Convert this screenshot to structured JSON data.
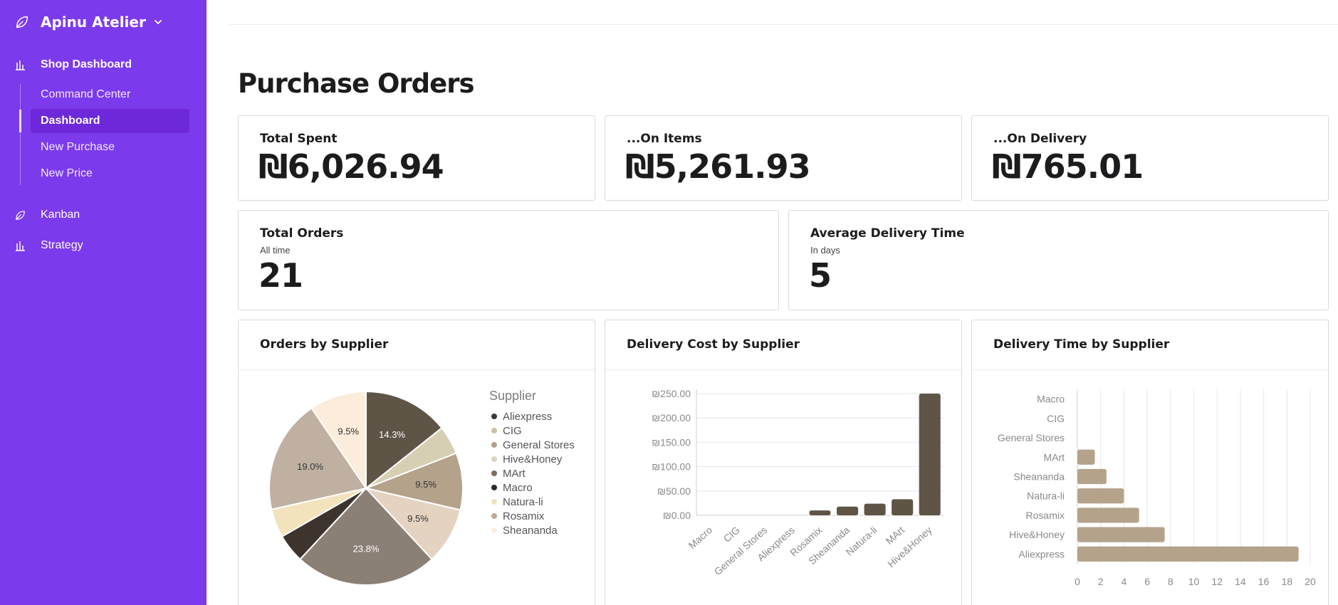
{
  "sidebar": {
    "brand": "Apinu Atelier",
    "items": [
      {
        "label": "Shop Dashboard"
      },
      {
        "label": "Kanban"
      },
      {
        "label": "Strategy"
      }
    ],
    "subitems": [
      {
        "label": "Command Center"
      },
      {
        "label": "Dashboard"
      },
      {
        "label": "New Purchase"
      },
      {
        "label": "New Price"
      }
    ],
    "colors": {
      "background": "#7c3aed",
      "active": "#6d28d9"
    },
    "icons": [
      "leaf-icon",
      "chevron-down-icon",
      "bar-chart-icon"
    ]
  },
  "page": {
    "title": "Purchase Orders"
  },
  "stats": {
    "total_spent": {
      "title": "Total Spent",
      "value": "₪6,026.94"
    },
    "on_items": {
      "title": "...On Items",
      "value": "₪5,261.93"
    },
    "on_delivery": {
      "title": "...On Delivery",
      "value": "₪765.01"
    },
    "total_orders": {
      "title": "Total Orders",
      "subtitle": "All time",
      "value": "21"
    },
    "avg_delivery": {
      "title": "Average Delivery Time",
      "subtitle": "In days",
      "value": "5"
    }
  },
  "chart_data": [
    {
      "type": "pie",
      "title": "Orders by Supplier",
      "legend_title": "Supplier",
      "legend_position": "right",
      "slices": [
        {
          "name": "Hive&Honey",
          "value": 14.3,
          "label": "14.3%",
          "color": "#5e5547"
        },
        {
          "name": "Natura-li",
          "value": 4.8,
          "label": "",
          "color": "#d6cfb3"
        },
        {
          "name": "Sheananda",
          "value": 9.5,
          "label": "9.5%",
          "color": "#b5a28b"
        },
        {
          "name": "Rosamix",
          "value": 9.5,
          "label": "9.5%",
          "color": "#e5d3c1"
        },
        {
          "name": "General Stores",
          "value": 23.8,
          "label": "23.8%",
          "color": "#8b8076"
        },
        {
          "name": "Macro",
          "value": 4.8,
          "label": "",
          "color": "#3d352d"
        },
        {
          "name": "CIG",
          "value": 4.8,
          "label": "",
          "color": "#f3e3bd"
        },
        {
          "name": "MArt",
          "value": 19.0,
          "label": "19.0%",
          "color": "#bfb0a2"
        },
        {
          "name": "Aliexpress",
          "value": 9.5,
          "label": "9.5%",
          "color": "#fbecdb"
        }
      ],
      "legend": [
        {
          "name": "Aliexpress",
          "color": "#3d3a33"
        },
        {
          "name": "CIG",
          "color": "#cbc1a3"
        },
        {
          "name": "General Stores",
          "color": "#b39f8a"
        },
        {
          "name": "Hive&Honey",
          "color": "#e3d2c0"
        },
        {
          "name": "MArt",
          "color": "#7a6d5f"
        },
        {
          "name": "Macro",
          "color": "#2f2a25"
        },
        {
          "name": "Natura-li",
          "color": "#f1e2bf"
        },
        {
          "name": "Rosamix",
          "color": "#bca994"
        },
        {
          "name": "Sheananda",
          "color": "#fdeedd"
        }
      ]
    },
    {
      "type": "bar",
      "title": "Delivery Cost by Supplier",
      "categories": [
        "Macro",
        "CIG",
        "General Stores",
        "Aliexpress",
        "Rosamix",
        "Sheananda",
        "Natura-li",
        "MArt",
        "Hive&Honey"
      ],
      "values": [
        0,
        0,
        0,
        0,
        10,
        18,
        24,
        33,
        250
      ],
      "ylim": [
        0,
        250
      ],
      "yticks": [
        "₪0.00",
        "₪50.00",
        "₪100.00",
        "₪150.00",
        "₪200.00",
        "₪250.00"
      ],
      "color": "#5e5547",
      "grid": true
    },
    {
      "type": "bar",
      "orientation": "horizontal",
      "title": "Delivery Time by Supplier",
      "categories": [
        "Macro",
        "CIG",
        "General Stores",
        "MArt",
        "Sheananda",
        "Natura-li",
        "Rosamix",
        "Hive&Honey",
        "Aliexpress"
      ],
      "values": [
        0,
        0,
        0,
        1.5,
        2.5,
        4,
        5.3,
        7.5,
        19
      ],
      "xlim": [
        0,
        20
      ],
      "xticks": [
        "0",
        "2",
        "4",
        "6",
        "8",
        "10",
        "12",
        "14",
        "16",
        "18",
        "20"
      ],
      "color": "#b5a28b",
      "grid": true
    }
  ]
}
